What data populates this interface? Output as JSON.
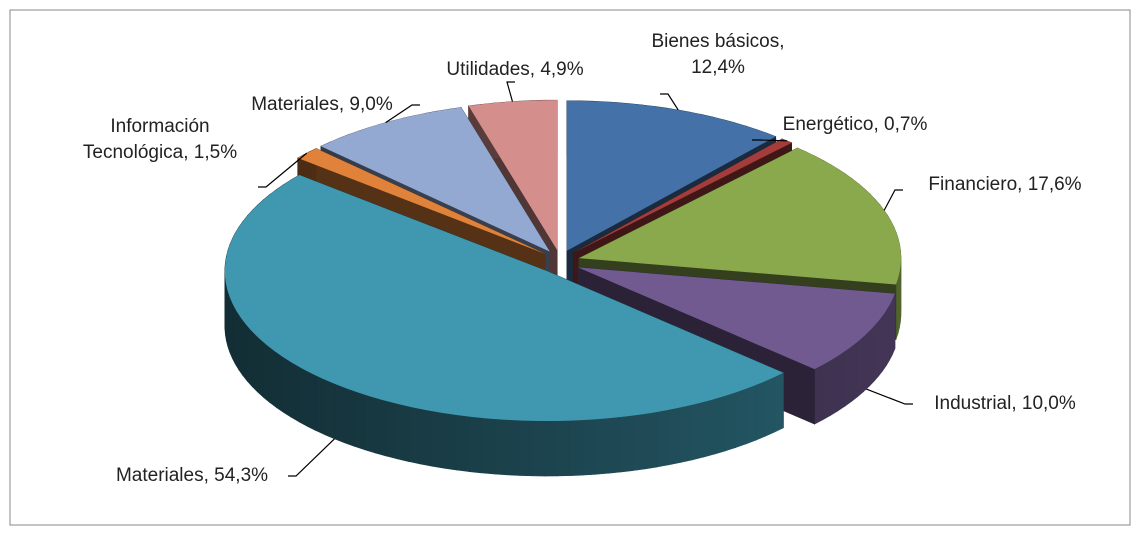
{
  "chart_data": {
    "type": "pie3d",
    "values": [
      12.4,
      0.7,
      17.6,
      10.0,
      54.3,
      1.5,
      9.0,
      4.9
    ],
    "value_labels": [
      "Bienes básicos,\n12,4%",
      "Energético, 0,7%",
      "Financiero, 17,6%",
      "Industrial, 10,0%",
      "Materiales, 54,3%",
      "Información\nTecnológica, 1,5%",
      "Materiales, 9,0%",
      "Utilidades, 4,9%"
    ],
    "colors": [
      "#4472a8",
      "#a33c3a",
      "#8aa84c",
      "#705a90",
      "#3f98b0",
      "#e0823a",
      "#93a9d2",
      "#d48f8d"
    ]
  }
}
